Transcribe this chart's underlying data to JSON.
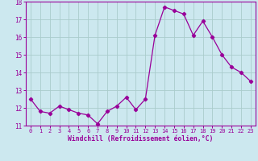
{
  "x": [
    0,
    1,
    2,
    3,
    4,
    5,
    6,
    7,
    8,
    9,
    10,
    11,
    12,
    13,
    14,
    15,
    16,
    17,
    18,
    19,
    20,
    21,
    22,
    23
  ],
  "y": [
    12.5,
    11.8,
    11.7,
    12.1,
    11.9,
    11.7,
    11.6,
    11.1,
    11.8,
    12.1,
    12.6,
    11.9,
    12.5,
    16.1,
    17.7,
    17.5,
    17.3,
    16.1,
    16.9,
    16.0,
    15.0,
    14.3,
    14.0,
    13.5
  ],
  "line_color": "#990099",
  "marker": "D",
  "marker_size": 2.2,
  "bg_color": "#cce8ef",
  "grid_color": "#aacccc",
  "xlabel": "Windchill (Refroidissement éolien,°C)",
  "xlabel_color": "#990099",
  "tick_color": "#990099",
  "ylim": [
    11,
    18
  ],
  "yticks": [
    11,
    12,
    13,
    14,
    15,
    16,
    17,
    18
  ],
  "xticks": [
    0,
    1,
    2,
    3,
    4,
    5,
    6,
    7,
    8,
    9,
    10,
    11,
    12,
    13,
    14,
    15,
    16,
    17,
    18,
    19,
    20,
    21,
    22,
    23
  ],
  "xtick_labels": [
    "0",
    "1",
    "2",
    "3",
    "4",
    "5",
    "6",
    "7",
    "8",
    "9",
    "10",
    "11",
    "12",
    "13",
    "14",
    "15",
    "16",
    "17",
    "18",
    "19",
    "20",
    "21",
    "22",
    "23"
  ]
}
